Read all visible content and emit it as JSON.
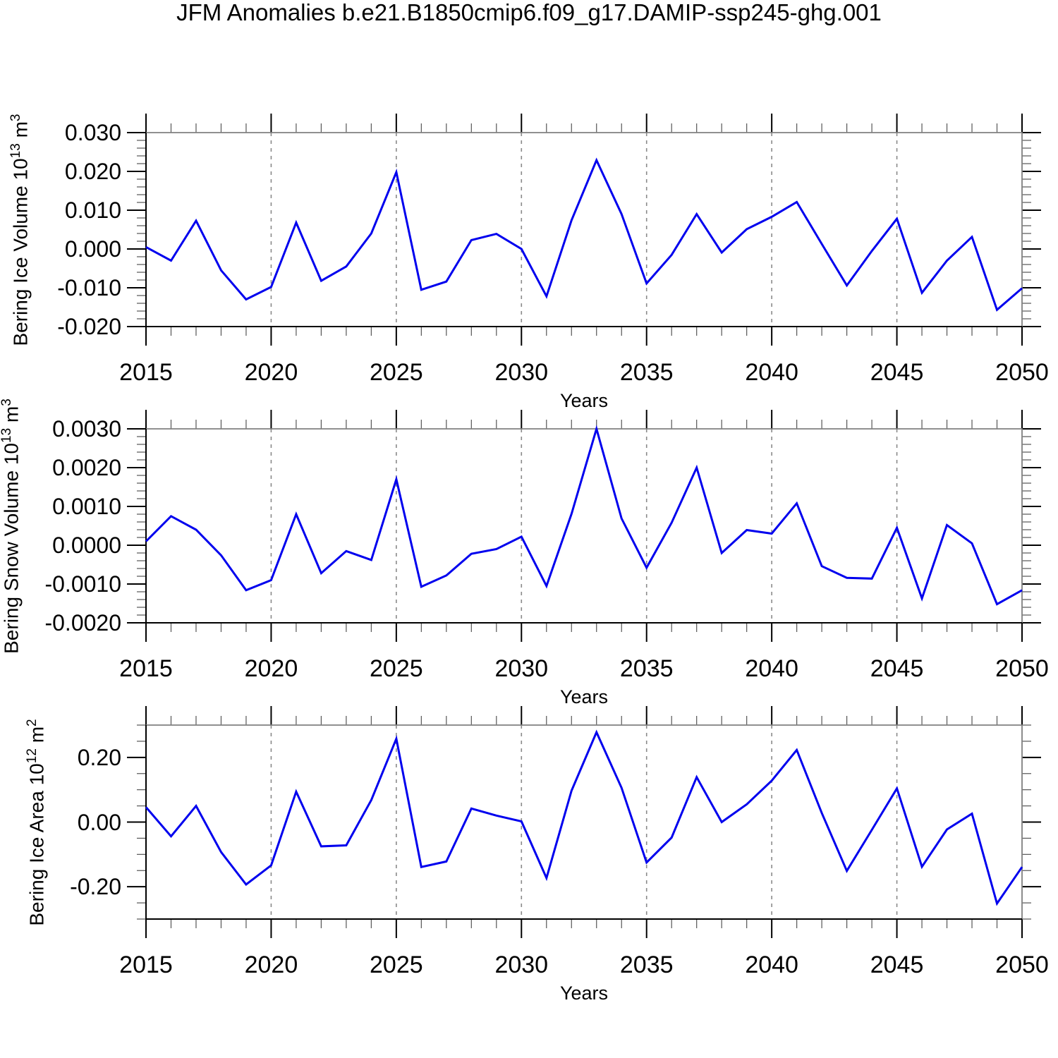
{
  "title": "JFM Anomalies b.e21.B1850cmip6.f09_g17.DAMIP-ssp245-ghg.001",
  "colors": {
    "line": "#0000ee",
    "grid": "#8a8a8a",
    "frame_dark": "#000000",
    "frame_light": "#808080",
    "minor_tick": "#555555"
  },
  "chart_data": [
    {
      "type": "line",
      "ylabel": "Bering Ice Volume 10^13 m^3",
      "ylabel_parts": {
        "base1": "Bering Ice Volume 10",
        "sup1": "13",
        "base2": " m",
        "sup2": "3"
      },
      "xlabel": "Years",
      "xlim": [
        2015,
        2050
      ],
      "ylim": [
        -0.02,
        0.03
      ],
      "ytick_major": 0.01,
      "ytick_minor": 0.002,
      "ytick_labels": [
        "0.030",
        "0.020",
        "0.010",
        "0.000",
        "-0.010",
        "-0.020"
      ],
      "xtick_labels": [
        "2015",
        "2020",
        "2025",
        "2030",
        "2035",
        "2040",
        "2045",
        "2050"
      ],
      "grid_x": [
        2020,
        2025,
        2030,
        2035,
        2040,
        2045
      ],
      "x": [
        2015,
        2016,
        2017,
        2018,
        2019,
        2020,
        2021,
        2022,
        2023,
        2024,
        2025,
        2026,
        2027,
        2028,
        2029,
        2030,
        2031,
        2032,
        2033,
        2034,
        2035,
        2036,
        2037,
        2038,
        2039,
        2040,
        2041,
        2042,
        2043,
        2044,
        2045,
        2046,
        2047,
        2048,
        2049,
        2050
      ],
      "values": [
        0.0005,
        -0.003,
        0.0073,
        -0.0055,
        -0.013,
        -0.0098,
        0.0068,
        -0.0082,
        -0.0045,
        0.004,
        0.0198,
        -0.0105,
        -0.0084,
        0.0023,
        0.0039,
        0.0,
        -0.0122,
        0.0074,
        0.0229,
        0.009,
        -0.0089,
        -0.0015,
        0.009,
        -0.0009,
        0.0051,
        0.0083,
        0.0121,
        0.0013,
        -0.0094,
        -0.0005,
        0.0078,
        -0.0113,
        -0.003,
        0.0031,
        -0.0157,
        -0.0101
      ]
    },
    {
      "type": "line",
      "ylabel": "Bering Snow Volume 10^13 m^3",
      "ylabel_parts": {
        "base1": "Bering Snow Volume 10",
        "sup1": "13",
        "base2": " m",
        "sup2": "3"
      },
      "xlabel": "Years",
      "xlim": [
        2015,
        2050
      ],
      "ylim": [
        -0.002,
        0.003
      ],
      "ytick_major": 0.001,
      "ytick_minor": 0.0002,
      "ytick_labels": [
        "0.0030",
        "0.0020",
        "0.0010",
        "0.0000",
        "-0.0010",
        "-0.0020"
      ],
      "xtick_labels": [
        "2015",
        "2020",
        "2025",
        "2030",
        "2035",
        "2040",
        "2045",
        "2050"
      ],
      "grid_x": [
        2020,
        2025,
        2030,
        2035,
        2040,
        2045
      ],
      "x": [
        2015,
        2016,
        2017,
        2018,
        2019,
        2020,
        2021,
        2022,
        2023,
        2024,
        2025,
        2026,
        2027,
        2028,
        2029,
        2030,
        2031,
        2032,
        2033,
        2034,
        2035,
        2036,
        2037,
        2038,
        2039,
        2040,
        2041,
        2042,
        2043,
        2044,
        2045,
        2046,
        2047,
        2048,
        2049,
        2050
      ],
      "values": [
        0.0001,
        0.00075,
        0.0004,
        -0.00026,
        -0.00116,
        -0.0009,
        0.0008,
        -0.00072,
        -0.00015,
        -0.00038,
        0.0017,
        -0.00107,
        -0.00078,
        -0.00022,
        -0.0001,
        0.00022,
        -0.00105,
        0.00081,
        0.003,
        0.00069,
        -0.00058,
        0.00058,
        0.002,
        -0.0002,
        0.00039,
        0.0003,
        0.00108,
        -0.00054,
        -0.00084,
        -0.00086,
        0.00045,
        -0.00137,
        0.00052,
        5e-05,
        -0.00152,
        -0.00116
      ]
    },
    {
      "type": "line",
      "ylabel": "Bering Ice Area 10^12 m^2",
      "ylabel_parts": {
        "base1": "Bering Ice Area 10",
        "sup1": "12",
        "base2": " m",
        "sup2": "2"
      },
      "xlabel": "Years",
      "xlim": [
        2015,
        2050
      ],
      "ylim": [
        -0.3,
        0.3
      ],
      "ytick_major": 0.2,
      "ytick_minor": 0.05,
      "ytick_labels": [
        "0.20",
        "0.00",
        "-0.20"
      ],
      "xtick_labels": [
        "2015",
        "2020",
        "2025",
        "2030",
        "2035",
        "2040",
        "2045",
        "2050"
      ],
      "grid_x": [
        2020,
        2025,
        2030,
        2035,
        2040,
        2045
      ],
      "x": [
        2015,
        2016,
        2017,
        2018,
        2019,
        2020,
        2021,
        2022,
        2023,
        2024,
        2025,
        2026,
        2027,
        2028,
        2029,
        2030,
        2031,
        2032,
        2033,
        2034,
        2035,
        2036,
        2037,
        2038,
        2039,
        2040,
        2041,
        2042,
        2043,
        2044,
        2045,
        2046,
        2047,
        2048,
        2049,
        2050
      ],
      "values": [
        0.046,
        -0.044,
        0.05,
        -0.093,
        -0.193,
        -0.134,
        0.094,
        -0.075,
        -0.072,
        0.068,
        0.258,
        -0.139,
        -0.122,
        0.042,
        0.02,
        0.002,
        -0.173,
        0.097,
        0.278,
        0.106,
        -0.125,
        -0.048,
        0.139,
        0.0,
        0.055,
        0.128,
        0.223,
        0.028,
        -0.151,
        -0.024,
        0.104,
        -0.138,
        -0.023,
        0.026,
        -0.252,
        -0.139
      ]
    }
  ]
}
